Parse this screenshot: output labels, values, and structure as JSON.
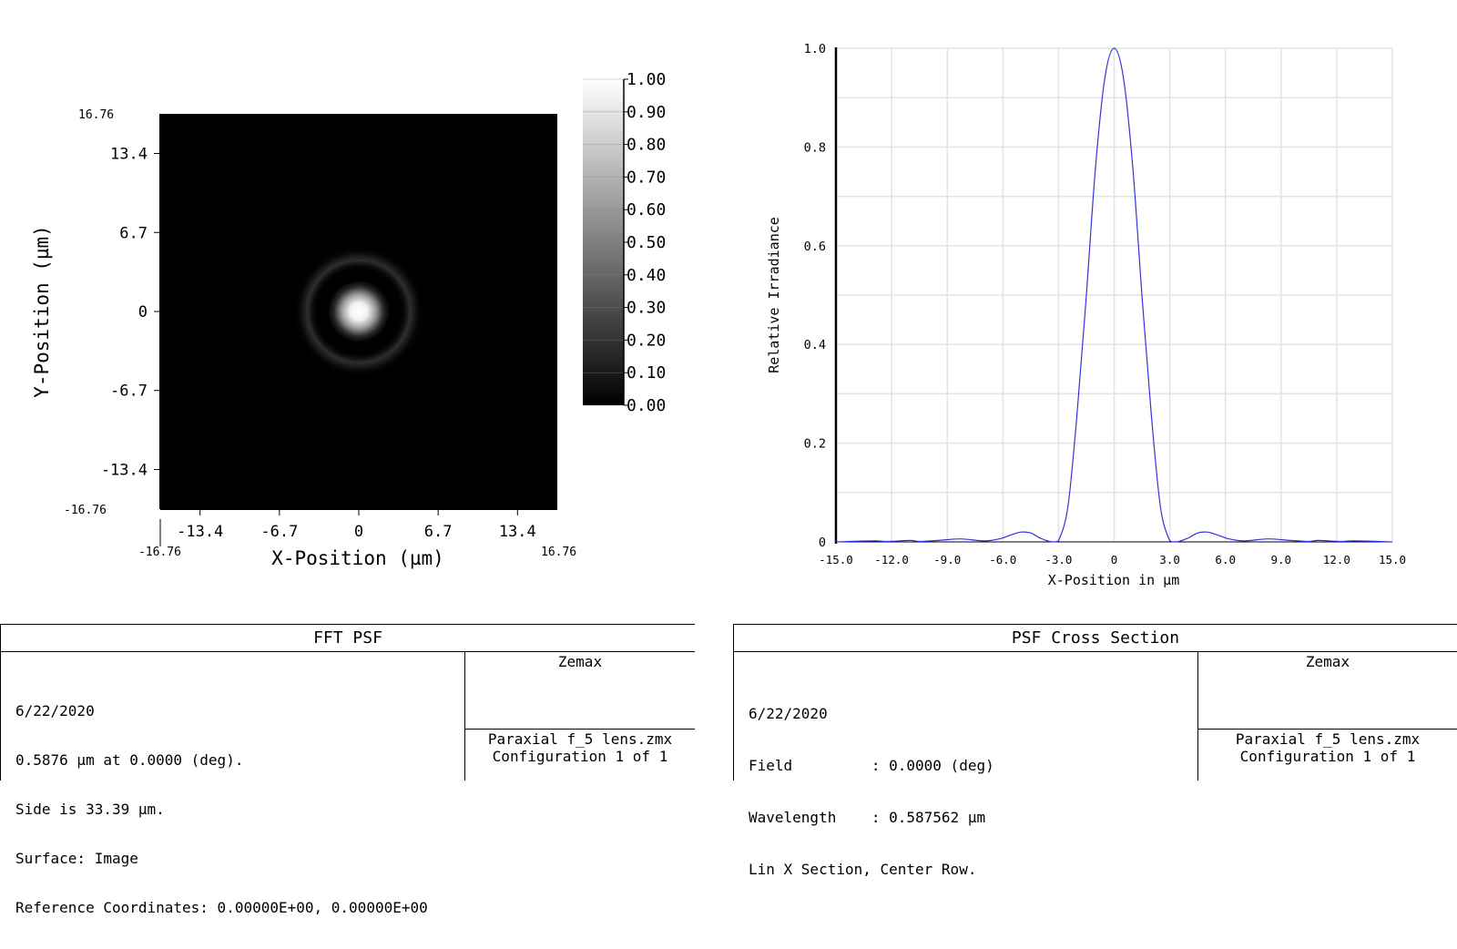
{
  "colors": {
    "psf_curve": "#3333dd",
    "plot_bg": "#000000",
    "grid": "#e3e3e3"
  },
  "chart_data": [
    {
      "type": "heatmap",
      "title": "",
      "xlabel": "X-Position (µm)",
      "ylabel": "Y-Position (µm)",
      "xlim": [
        -16.76,
        16.76
      ],
      "ylim": [
        -16.76,
        16.76
      ],
      "x_ticks": [
        "-13.4",
        "-6.7",
        "0",
        "6.7",
        "13.4"
      ],
      "y_ticks": [
        "13.4",
        "6.7",
        "0",
        "-6.7",
        "-13.4"
      ],
      "x_extent_labels": [
        "-16.76",
        "16.76"
      ],
      "y_extent_labels": [
        "16.76",
        "-16.76"
      ],
      "colorbar": {
        "range": [
          0,
          1
        ],
        "ticks": [
          "1.00",
          "0.90",
          "0.80",
          "0.70",
          "0.60",
          "0.50",
          "0.40",
          "0.30",
          "0.20",
          "0.10",
          "0.00"
        ],
        "colormap": "grayscale"
      },
      "peak": {
        "x": 0,
        "y": 0,
        "value": 1.0
      },
      "colors": "grayscale"
    },
    {
      "type": "line",
      "title": "",
      "xlabel": "X-Position in µm",
      "ylabel": "Relative Irradiance",
      "xlim": [
        -15,
        15
      ],
      "ylim": [
        0,
        1
      ],
      "x_ticks": [
        "-15.0",
        "-12.0",
        "-9.0",
        "-6.0",
        "-3.0",
        "0",
        "3.0",
        "6.0",
        "9.0",
        "12.0",
        "15.0"
      ],
      "y_ticks": [
        "0",
        "0.2",
        "0.4",
        "0.6",
        "0.8",
        "1.0"
      ],
      "grid": true,
      "series": [
        {
          "x": [
            -15,
            -13.0,
            -12.2,
            -11.0,
            -10.5,
            -9.5,
            -8.3,
            -7.0,
            -6.2,
            -5.5,
            -5.0,
            -4.5,
            -4.0,
            -3.5,
            -3.2,
            -3.0,
            -2.5,
            -2.0,
            -1.5,
            -1.0,
            -0.5,
            0,
            0.5,
            1.0,
            1.5,
            2.0,
            2.5,
            3.0,
            3.2,
            3.5,
            4.0,
            4.5,
            5.0,
            5.5,
            6.2,
            7.0,
            8.3,
            9.5,
            10.5,
            11.0,
            12.2,
            13.0,
            15
          ],
          "values": [
            0.0,
            0.002,
            0.001,
            0.003,
            0.001,
            0.003,
            0.006,
            0.002,
            0.006,
            0.015,
            0.02,
            0.018,
            0.008,
            0.001,
            0.0,
            0.002,
            0.07,
            0.26,
            0.5,
            0.76,
            0.94,
            1.0,
            0.94,
            0.76,
            0.5,
            0.26,
            0.07,
            0.002,
            0.0,
            0.001,
            0.008,
            0.018,
            0.02,
            0.015,
            0.006,
            0.002,
            0.006,
            0.003,
            0.001,
            0.003,
            0.001,
            0.002,
            0.0
          ]
        }
      ]
    }
  ],
  "panels": {
    "left": {
      "title": "FFT PSF",
      "lines": [
        "6/22/2020",
        "0.5876 µm at 0.0000 (deg).",
        "Side is 33.39 µm.",
        "Surface: Image",
        "Reference Coordinates: 0.00000E+00, 0.00000E+00"
      ],
      "company": "Zemax",
      "file": "Paraxial f_5 lens.zmx",
      "config": "Configuration 1 of 1"
    },
    "right": {
      "title": "PSF Cross Section",
      "lines": [
        "6/22/2020",
        "Field         : 0.0000 (deg)",
        "Wavelength    : 0.587562 µm",
        "Lin X Section, Center Row."
      ],
      "company": "Zemax",
      "file": "Paraxial f_5 lens.zmx",
      "config": "Configuration 1 of 1"
    }
  }
}
